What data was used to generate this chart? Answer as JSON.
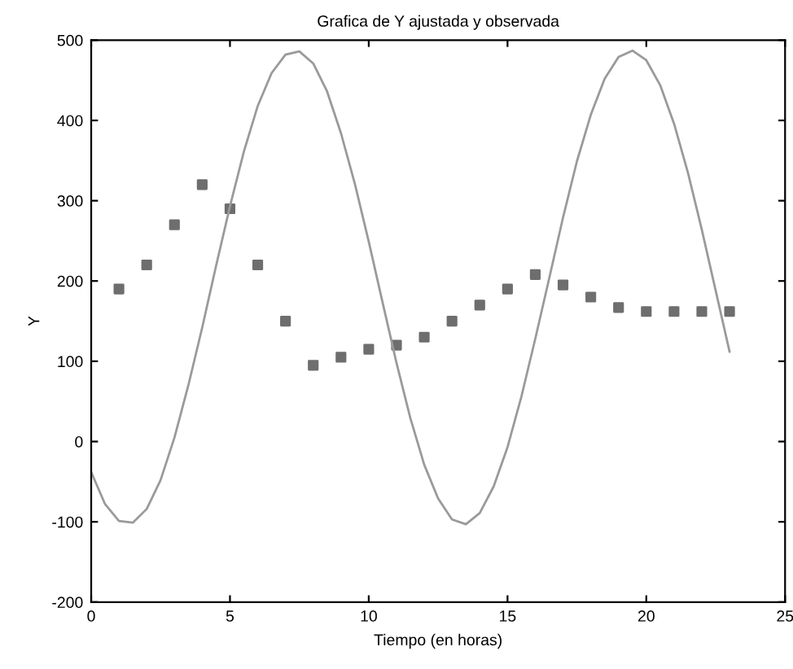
{
  "chart_data": {
    "type": "scatter",
    "title": "Grafica de Y ajustada y observada",
    "xlabel": "Tiempo (en horas)",
    "ylabel": "Y",
    "xlim": [
      0,
      25
    ],
    "xticks": [
      0,
      5,
      10,
      15,
      20,
      25
    ],
    "ylim": [
      -200,
      500
    ],
    "yticks": [
      -200,
      -100,
      0,
      100,
      200,
      300,
      400,
      500
    ],
    "grid": false,
    "series": [
      {
        "type": "line",
        "color": "#9a9a9a",
        "line_style": "solid",
        "marker": "none",
        "x": [
          0,
          0.5,
          1,
          1.5,
          2,
          2.5,
          3,
          3.5,
          4,
          4.5,
          5,
          5.5,
          6,
          6.5,
          7,
          7.5,
          8,
          8.5,
          9,
          9.5,
          10,
          10.5,
          11,
          11.5,
          12,
          12.5,
          13,
          13.5,
          14,
          14.5,
          15,
          15.5,
          16,
          16.5,
          17,
          17.5,
          18,
          18.5,
          19,
          19.5,
          20,
          20.5,
          21,
          21.5,
          22,
          22.5,
          23
        ],
        "values": [
          -38,
          -78,
          -99,
          -101,
          -84,
          -48,
          5,
          70,
          142,
          219,
          293,
          361,
          418,
          459,
          482,
          486,
          471,
          436,
          384,
          321,
          249,
          173,
          98,
          29,
          -29,
          -71,
          -97,
          -103,
          -89,
          -56,
          -7,
          56,
          128,
          203,
          279,
          349,
          407,
          452,
          479,
          487,
          475,
          444,
          396,
          335,
          264,
          188,
          112
        ]
      },
      {
        "color": "#6e6e6e",
        "marker": "square",
        "x": [
          1,
          2,
          3,
          4,
          5,
          6,
          7,
          8,
          9,
          10,
          11,
          12,
          13,
          14,
          15,
          16,
          17,
          18,
          19,
          20,
          21,
          22,
          23
        ],
        "values": [
          190,
          220,
          270,
          320,
          290,
          220,
          150,
          95,
          105,
          115,
          120,
          130,
          150,
          170,
          190,
          208,
          195,
          180,
          167,
          162,
          162,
          162,
          162
        ]
      }
    ]
  }
}
